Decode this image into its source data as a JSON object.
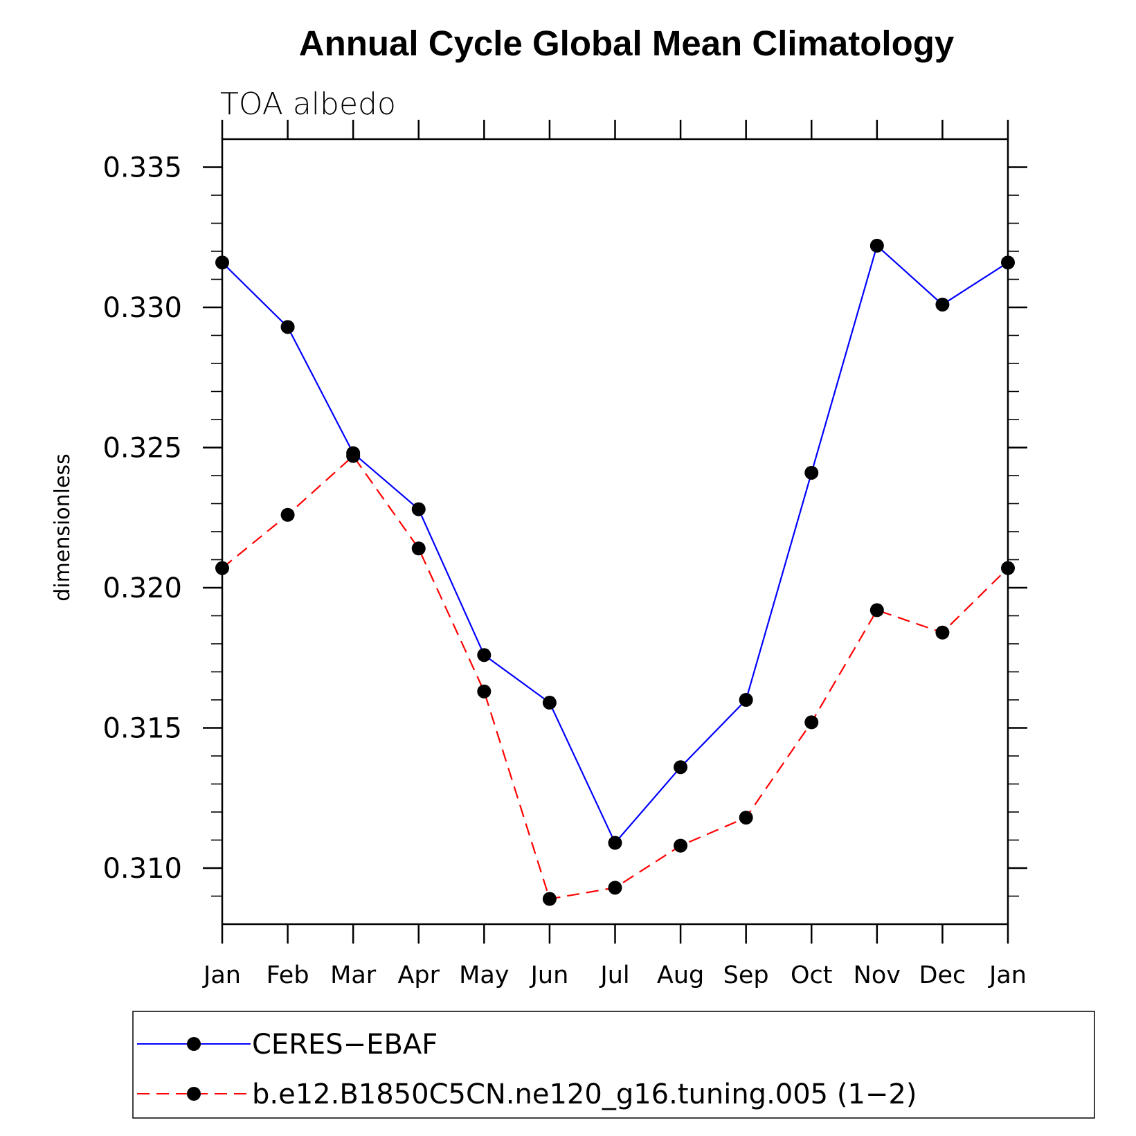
{
  "chart_data": {
    "type": "line",
    "title": "Annual Cycle Global Mean Climatology",
    "subtitle": "TOA albedo",
    "xlabel": "",
    "ylabel": "dimensionless",
    "categories": [
      "Jan",
      "Feb",
      "Mar",
      "Apr",
      "May",
      "Jun",
      "Jul",
      "Aug",
      "Sep",
      "Oct",
      "Nov",
      "Dec",
      "Jan"
    ],
    "ylim": [
      0.308,
      0.336
    ],
    "yticks": [
      0.31,
      0.315,
      0.32,
      0.325,
      0.33,
      0.335
    ],
    "ytick_labels": [
      "0.310",
      "0.315",
      "0.320",
      "0.325",
      "0.330",
      "0.335"
    ],
    "y_minor_step": 0.001,
    "grid": false,
    "legend_position": "bottom",
    "series": [
      {
        "name": "CERES−EBAF",
        "color": "#0000ff",
        "dash": "solid",
        "marker": "filled-circle",
        "values": [
          0.3316,
          0.3293,
          0.3248,
          0.3228,
          0.3176,
          0.3159,
          0.3109,
          0.3136,
          0.316,
          0.3241,
          0.3322,
          0.3301,
          0.3316
        ]
      },
      {
        "name": "b.e12.B1850C5CN.ne120_g16.tuning.005 (1−2)",
        "color": "#ff0000",
        "dash": "dashed",
        "marker": "filled-circle",
        "values": [
          0.3207,
          0.3226,
          0.3247,
          0.3214,
          0.3163,
          0.3089,
          0.3093,
          0.3108,
          0.3118,
          0.3152,
          0.3192,
          0.3184,
          0.3207
        ]
      }
    ]
  }
}
